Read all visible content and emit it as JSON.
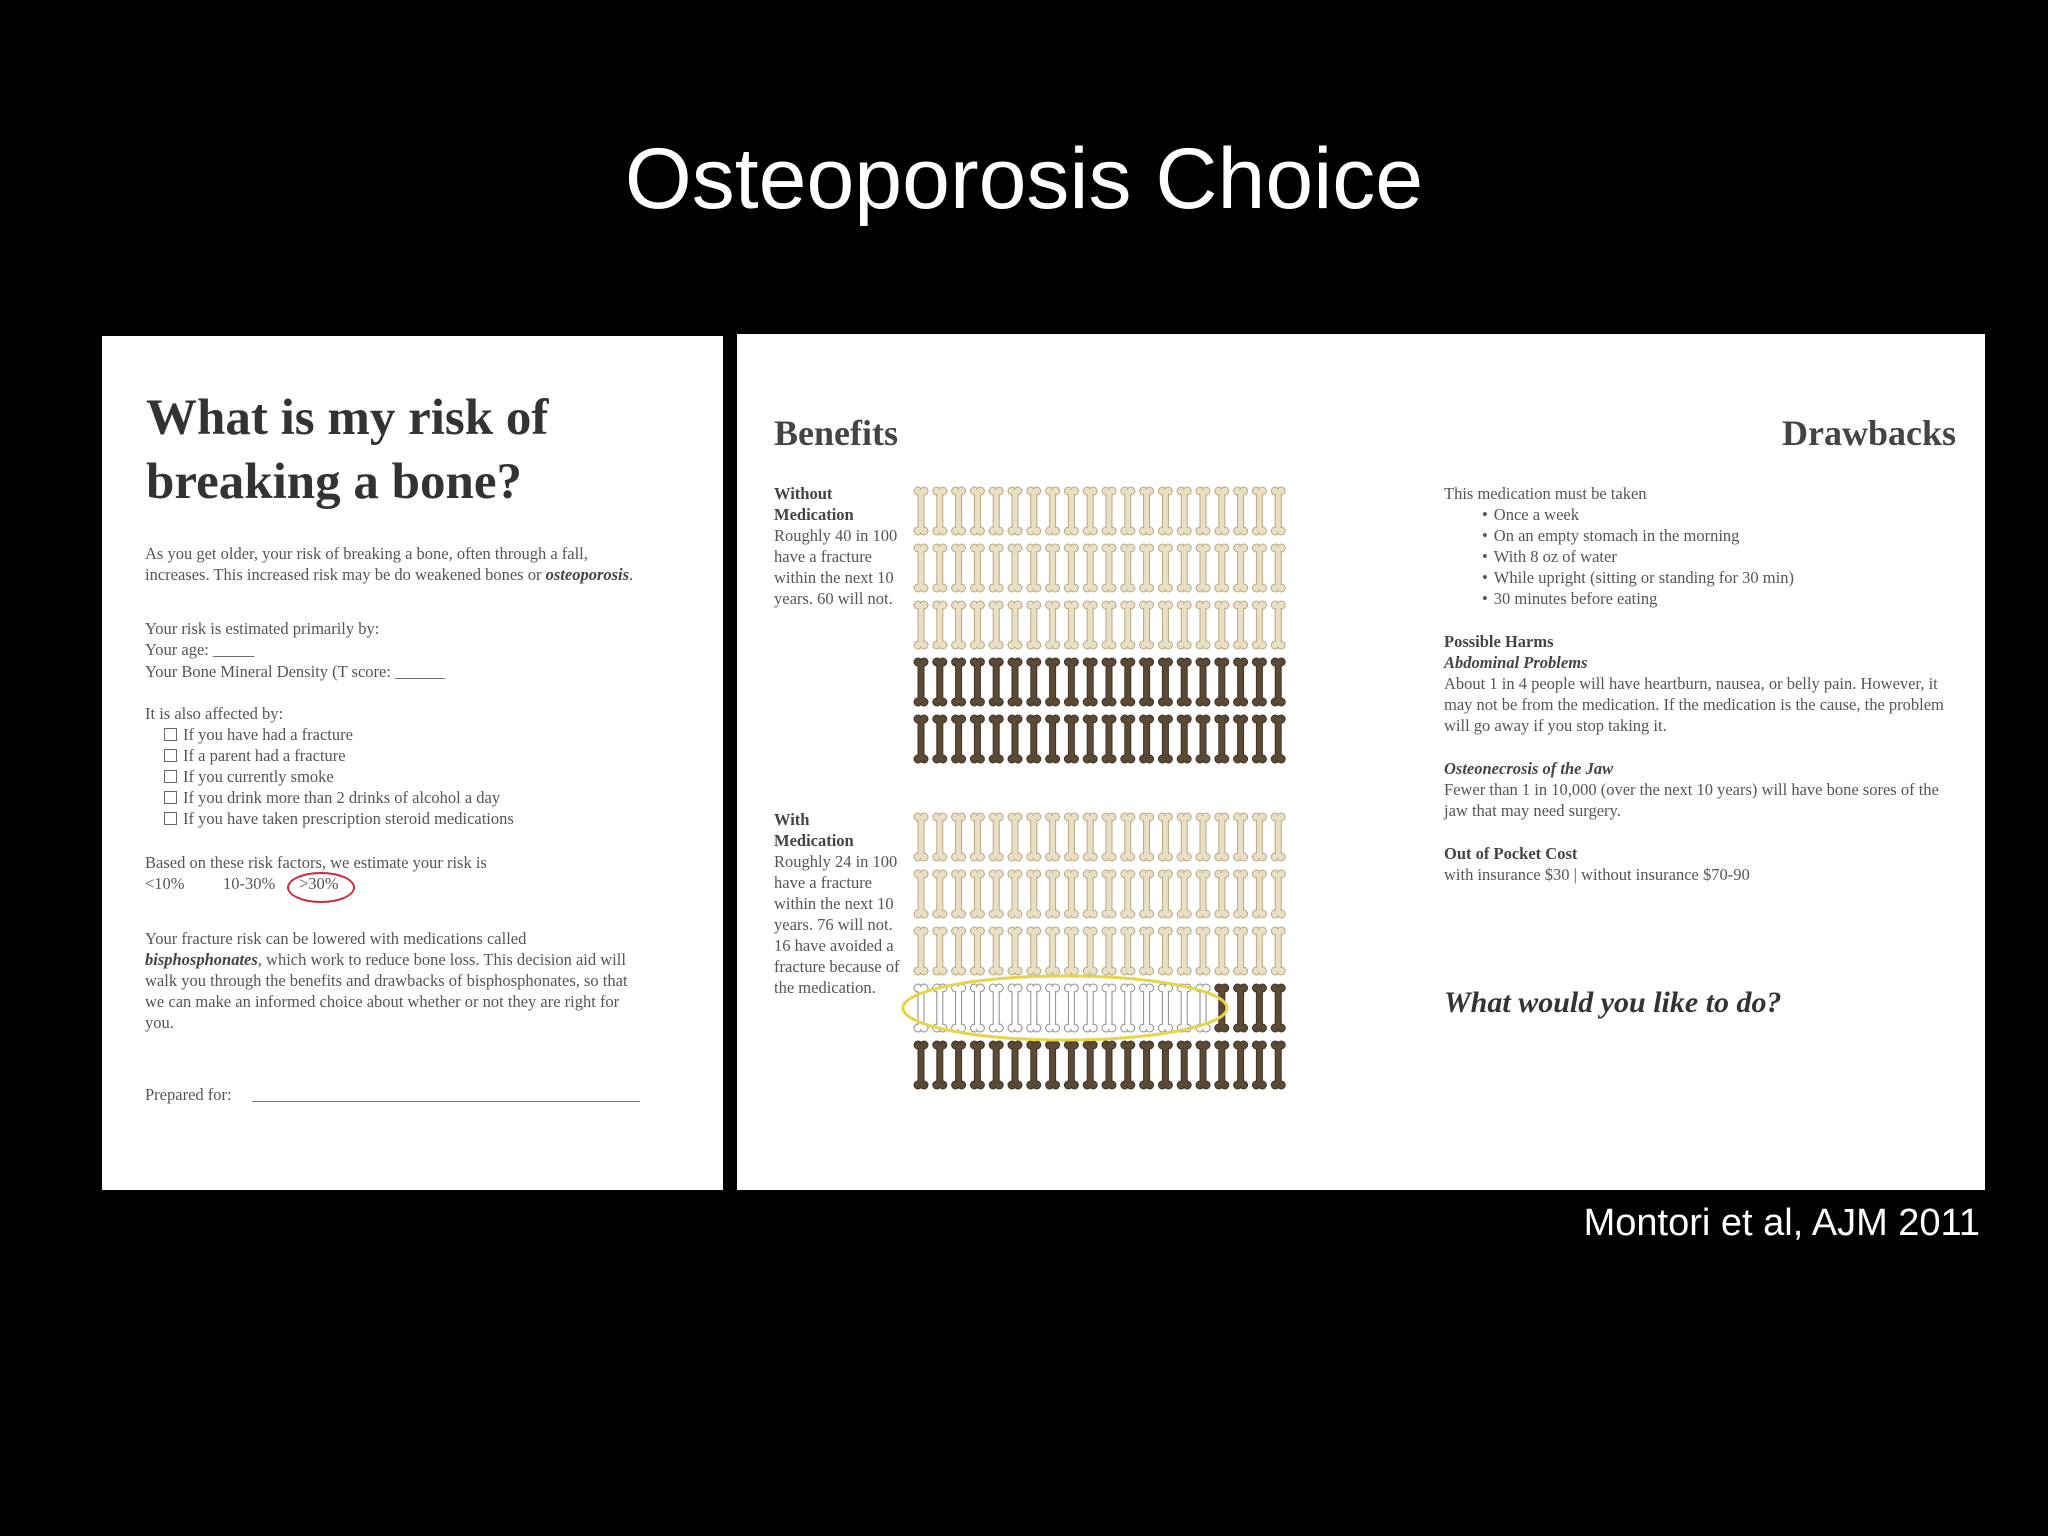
{
  "slide": {
    "title": "Osteoporosis Choice",
    "citation": "Montori et al,  AJM 2011"
  },
  "left_page": {
    "heading": [
      "What is my risk of",
      "breaking a bone?"
    ],
    "intro": [
      "As you get older, your risk of breaking a bone, often through a fall, increases. This increased risk may be do weakened bones or ",
      "osteoporosis",
      "."
    ],
    "estimated_by": "Your risk is estimated primarily by:",
    "age": "Your age: _____",
    "bmd": "Your Bone Mineral Density (T score: ______",
    "affected_by": "It is also affected by:",
    "factors": [
      "If you have had a fracture",
      "If a parent had a fracture",
      "If you currently smoke",
      "If you drink more than 2 drinks of alcohol a day",
      "If you have taken prescription steroid medications"
    ],
    "estimate": "Based on these risk factors, we estimate your risk is",
    "risk_options": [
      "<10%",
      "10-30%",
      ">30%"
    ],
    "lowered": [
      "Your fracture risk can be lowered with medications called ",
      "bisphosphonates",
      ", which work to reduce bone loss. This decision aid will walk you through the benefits and drawbacks of bisphosphonates, so that we can make an informed choice about whether or not they are right for you."
    ],
    "prepared_for": "Prepared for:"
  },
  "right_page": {
    "benefits_title": "Benefits",
    "drawbacks_title": "Drawbacks",
    "without": {
      "label": [
        "Without",
        "Medication"
      ],
      "text": "Roughly 40 in 100 have a fracture within the next 10 years. 60 will not."
    },
    "with": {
      "label": [
        "With",
        "Medication"
      ],
      "text": "Roughly 24 in 100 have a fracture within the next 10 years. 76 will not. 16 have avoided a fracture because of the medication."
    },
    "taken_intro": "This medication must be taken",
    "taken_items": [
      "Once a week",
      "On an empty stomach in the morning",
      "With 8 oz of water",
      "While upright (sitting or standing for 30 min)",
      "30 minutes before eating"
    ],
    "harms_title": "Possible Harms",
    "abdominal_title": "Abdominal Problems",
    "abdominal_text": "About 1 in 4 people will have heartburn, nausea, or belly pain. However, it may not be from the medication. If the medication is the cause, the problem will go away if you stop taking it.",
    "jaw_title": "Osteonecrosis of the Jaw",
    "jaw_text": "Fewer than 1 in 10,000 (over the next 10 years) will have bone sores of the jaw that may need surgery.",
    "cost_title": "Out of Pocket Cost",
    "cost_text": "with insurance $30 | without insurance $70-90",
    "question": "What would you like to do?"
  }
}
